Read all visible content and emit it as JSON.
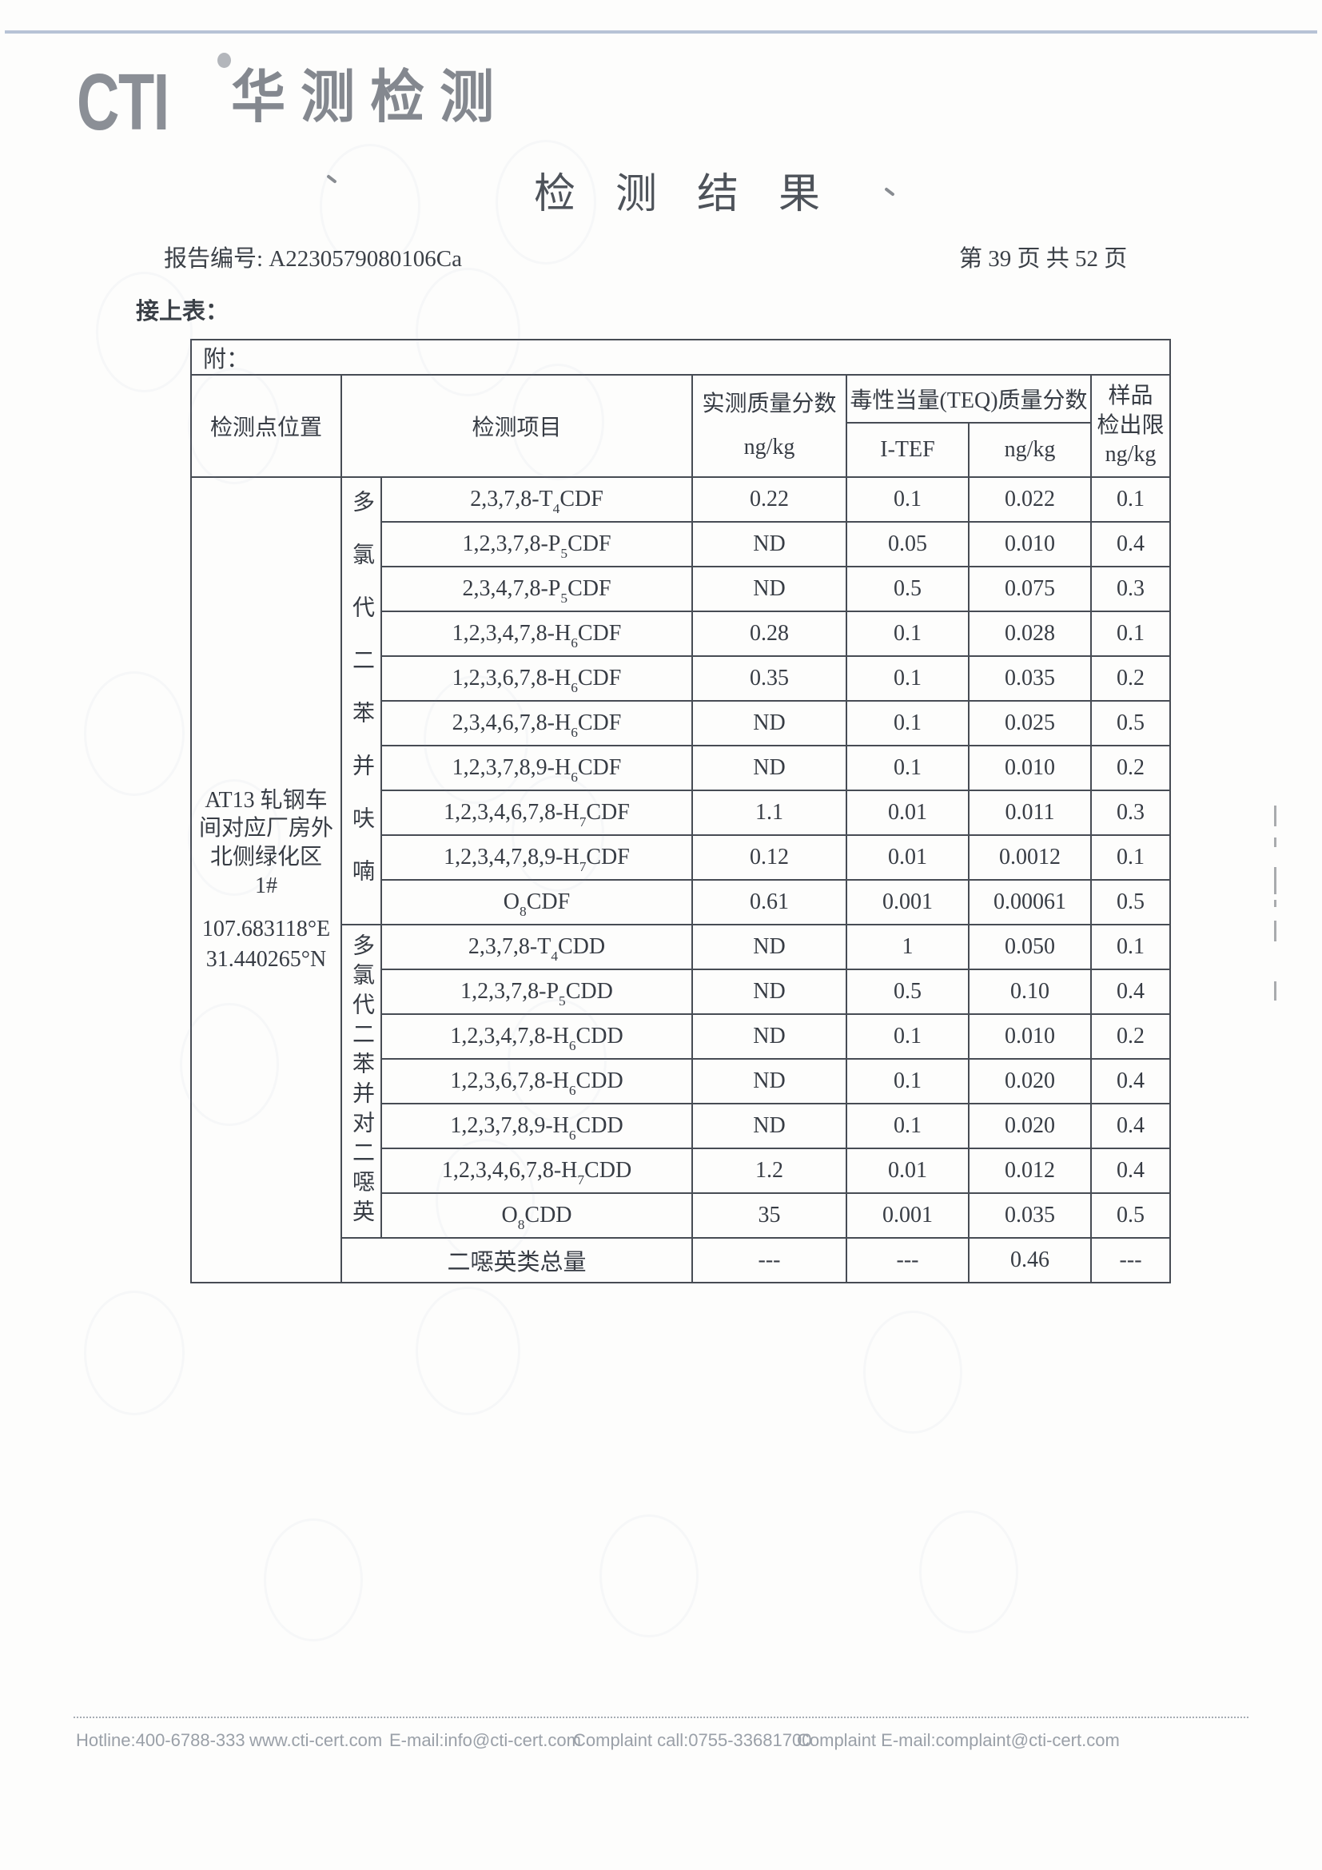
{
  "page": {
    "logo_text": "CTI",
    "logo_cn": "华测检测",
    "title": "检测结果",
    "report_label": "报告编号:",
    "report_number": "A2230579080106Ca",
    "page_indicator": "第 39 页  共 52 页",
    "continued_label": "接上表："
  },
  "table": {
    "attachment_label": "附：",
    "headers": {
      "location": "检测点位置",
      "item": "检测项目",
      "measured": "实测质量分数",
      "measured_unit": "ng/kg",
      "teq_group": "毒性当量(TEQ)质量分数",
      "itef": "I-TEF",
      "teq_unit": "ng/kg",
      "limit_line1": "样品",
      "limit_line2": "检出限",
      "limit_line3": "ng/kg"
    },
    "location": {
      "lines": [
        "AT13 轧钢车",
        "间对应厂房外",
        "北侧绿化区",
        "1#"
      ],
      "longitude": "107.683118°E",
      "latitude": "31.440265°N"
    },
    "groups": [
      {
        "label": "多氯代二苯并呋喃",
        "rows": [
          {
            "pre": "2,3,7,8-T",
            "sub": "4",
            "post": "CDF",
            "measured": "0.22",
            "itef": "0.1",
            "teq": "0.022",
            "limit": "0.1"
          },
          {
            "pre": "1,2,3,7,8-P",
            "sub": "5",
            "post": "CDF",
            "measured": "ND",
            "itef": "0.05",
            "teq": "0.010",
            "limit": "0.4"
          },
          {
            "pre": "2,3,4,7,8-P",
            "sub": "5",
            "post": "CDF",
            "measured": "ND",
            "itef": "0.5",
            "teq": "0.075",
            "limit": "0.3"
          },
          {
            "pre": "1,2,3,4,7,8-H",
            "sub": "6",
            "post": "CDF",
            "measured": "0.28",
            "itef": "0.1",
            "teq": "0.028",
            "limit": "0.1"
          },
          {
            "pre": "1,2,3,6,7,8-H",
            "sub": "6",
            "post": "CDF",
            "measured": "0.35",
            "itef": "0.1",
            "teq": "0.035",
            "limit": "0.2"
          },
          {
            "pre": "2,3,4,6,7,8-H",
            "sub": "6",
            "post": "CDF",
            "measured": "ND",
            "itef": "0.1",
            "teq": "0.025",
            "limit": "0.5"
          },
          {
            "pre": "1,2,3,7,8,9-H",
            "sub": "6",
            "post": "CDF",
            "measured": "ND",
            "itef": "0.1",
            "teq": "0.010",
            "limit": "0.2"
          },
          {
            "pre": "1,2,3,4,6,7,8-H",
            "sub": "7",
            "post": "CDF",
            "measured": "1.1",
            "itef": "0.01",
            "teq": "0.011",
            "limit": "0.3"
          },
          {
            "pre": "1,2,3,4,7,8,9-H",
            "sub": "7",
            "post": "CDF",
            "measured": "0.12",
            "itef": "0.01",
            "teq": "0.0012",
            "limit": "0.1"
          },
          {
            "pre": "O",
            "sub": "8",
            "post": "CDF",
            "measured": "0.61",
            "itef": "0.001",
            "teq": "0.00061",
            "limit": "0.5"
          }
        ]
      },
      {
        "label": "多氯代二苯并对二噁英",
        "rows": [
          {
            "pre": "2,3,7,8-T",
            "sub": "4",
            "post": "CDD",
            "measured": "ND",
            "itef": "1",
            "teq": "0.050",
            "limit": "0.1"
          },
          {
            "pre": "1,2,3,7,8-P",
            "sub": "5",
            "post": "CDD",
            "measured": "ND",
            "itef": "0.5",
            "teq": "0.10",
            "limit": "0.4"
          },
          {
            "pre": "1,2,3,4,7,8-H",
            "sub": "6",
            "post": "CDD",
            "measured": "ND",
            "itef": "0.1",
            "teq": "0.010",
            "limit": "0.2"
          },
          {
            "pre": "1,2,3,6,7,8-H",
            "sub": "6",
            "post": "CDD",
            "measured": "ND",
            "itef": "0.1",
            "teq": "0.020",
            "limit": "0.4"
          },
          {
            "pre": "1,2,3,7,8,9-H",
            "sub": "6",
            "post": "CDD",
            "measured": "ND",
            "itef": "0.1",
            "teq": "0.020",
            "limit": "0.4"
          },
          {
            "pre": "1,2,3,4,6,7,8-H",
            "sub": "7",
            "post": "CDD",
            "measured": "1.2",
            "itef": "0.01",
            "teq": "0.012",
            "limit": "0.4"
          },
          {
            "pre": "O",
            "sub": "8",
            "post": "CDD",
            "measured": "35",
            "itef": "0.001",
            "teq": "0.035",
            "limit": "0.5"
          }
        ]
      }
    ],
    "total_row": {
      "label": "二噁英类总量",
      "measured": "---",
      "itef": "---",
      "teq": "0.46",
      "limit": "---"
    }
  },
  "footer": {
    "items": [
      "Hotline:400-6788-333",
      "www.cti-cert.com",
      "E-mail:info@cti-cert.com",
      "Complaint call:0755-33681700",
      "Complaint E-mail:complaint@cti-cert.com"
    ]
  }
}
